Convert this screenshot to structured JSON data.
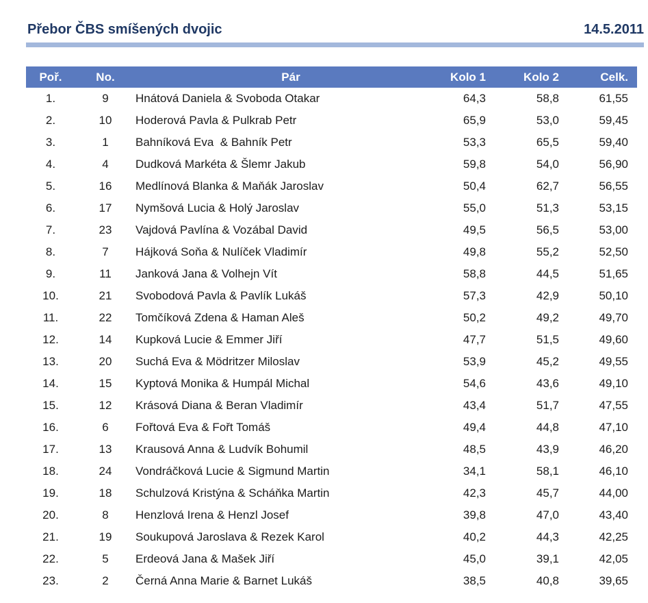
{
  "header": {
    "title": "Přebor ČBS smíšených dvojic",
    "date": "14.5.2011"
  },
  "colors": {
    "title_text": "#1F3864",
    "rule": "#A3B8DC",
    "table_header_bg": "#5A7ABF",
    "table_header_text": "#FFFFFF",
    "body_text": "#1C1C1C",
    "page_bg": "#FFFFFF"
  },
  "table": {
    "columns": [
      "Poř.",
      "No.",
      "Pár",
      "Kolo 1",
      "Kolo 2",
      "Celk."
    ],
    "rows": [
      {
        "rank": "1.",
        "no": "9",
        "pair": "Hnátová Daniela & Svoboda Otakar",
        "kolo1": "64,3",
        "kolo2": "58,8",
        "celk": "61,55"
      },
      {
        "rank": "2.",
        "no": "10",
        "pair": "Hoderová Pavla & Pulkrab Petr",
        "kolo1": "65,9",
        "kolo2": "53,0",
        "celk": "59,45"
      },
      {
        "rank": "3.",
        "no": "1",
        "pair": "Bahníková Eva  & Bahník Petr",
        "kolo1": "53,3",
        "kolo2": "65,5",
        "celk": "59,40"
      },
      {
        "rank": "4.",
        "no": "4",
        "pair": "Dudková Markéta & Šlemr Jakub",
        "kolo1": "59,8",
        "kolo2": "54,0",
        "celk": "56,90"
      },
      {
        "rank": "5.",
        "no": "16",
        "pair": "Medlínová Blanka & Maňák Jaroslav",
        "kolo1": "50,4",
        "kolo2": "62,7",
        "celk": "56,55"
      },
      {
        "rank": "6.",
        "no": "17",
        "pair": "Nymšová Lucia & Holý Jaroslav",
        "kolo1": "55,0",
        "kolo2": "51,3",
        "celk": "53,15"
      },
      {
        "rank": "7.",
        "no": "23",
        "pair": "Vajdová Pavlína & Vozábal David",
        "kolo1": "49,5",
        "kolo2": "56,5",
        "celk": "53,00"
      },
      {
        "rank": "8.",
        "no": "7",
        "pair": "Hájková Soňa & Nulíček Vladimír",
        "kolo1": "49,8",
        "kolo2": "55,2",
        "celk": "52,50"
      },
      {
        "rank": "9.",
        "no": "11",
        "pair": "Janková Jana & Volhejn Vít",
        "kolo1": "58,8",
        "kolo2": "44,5",
        "celk": "51,65"
      },
      {
        "rank": "10.",
        "no": "21",
        "pair": "Svobodová Pavla & Pavlík Lukáš",
        "kolo1": "57,3",
        "kolo2": "42,9",
        "celk": "50,10"
      },
      {
        "rank": "11.",
        "no": "22",
        "pair": "Tomčíková Zdena & Haman Aleš",
        "kolo1": "50,2",
        "kolo2": "49,2",
        "celk": "49,70"
      },
      {
        "rank": "12.",
        "no": "14",
        "pair": "Kupková Lucie & Emmer Jiří",
        "kolo1": "47,7",
        "kolo2": "51,5",
        "celk": "49,60"
      },
      {
        "rank": "13.",
        "no": "20",
        "pair": "Suchá Eva & Mödritzer Miloslav",
        "kolo1": "53,9",
        "kolo2": "45,2",
        "celk": "49,55"
      },
      {
        "rank": "14.",
        "no": "15",
        "pair": "Kyptová Monika & Humpál Michal",
        "kolo1": "54,6",
        "kolo2": "43,6",
        "celk": "49,10"
      },
      {
        "rank": "15.",
        "no": "12",
        "pair": "Krásová Diana & Beran Vladimír",
        "kolo1": "43,4",
        "kolo2": "51,7",
        "celk": "47,55"
      },
      {
        "rank": "16.",
        "no": "6",
        "pair": "Fořtová Eva & Fořt Tomáš",
        "kolo1": "49,4",
        "kolo2": "44,8",
        "celk": "47,10"
      },
      {
        "rank": "17.",
        "no": "13",
        "pair": "Krausová Anna & Ludvík Bohumil",
        "kolo1": "48,5",
        "kolo2": "43,9",
        "celk": "46,20"
      },
      {
        "rank": "18.",
        "no": "24",
        "pair": "Vondráčková Lucie & Sigmund Martin",
        "kolo1": "34,1",
        "kolo2": "58,1",
        "celk": "46,10"
      },
      {
        "rank": "19.",
        "no": "18",
        "pair": "Schulzová Kristýna & Scháňka Martin",
        "kolo1": "42,3",
        "kolo2": "45,7",
        "celk": "44,00"
      },
      {
        "rank": "20.",
        "no": "8",
        "pair": "Henzlová Irena & Henzl Josef",
        "kolo1": "39,8",
        "kolo2": "47,0",
        "celk": "43,40"
      },
      {
        "rank": "21.",
        "no": "19",
        "pair": "Soukupová Jaroslava & Rezek Karol",
        "kolo1": "40,2",
        "kolo2": "44,3",
        "celk": "42,25"
      },
      {
        "rank": "22.",
        "no": "5",
        "pair": "Erdeová Jana & Mašek Jiří",
        "kolo1": "45,0",
        "kolo2": "39,1",
        "celk": "42,05"
      },
      {
        "rank": "23.",
        "no": "2",
        "pair": "Černá Anna Marie & Barnet Lukáš",
        "kolo1": "38,5",
        "kolo2": "40,8",
        "celk": "39,65"
      }
    ]
  }
}
